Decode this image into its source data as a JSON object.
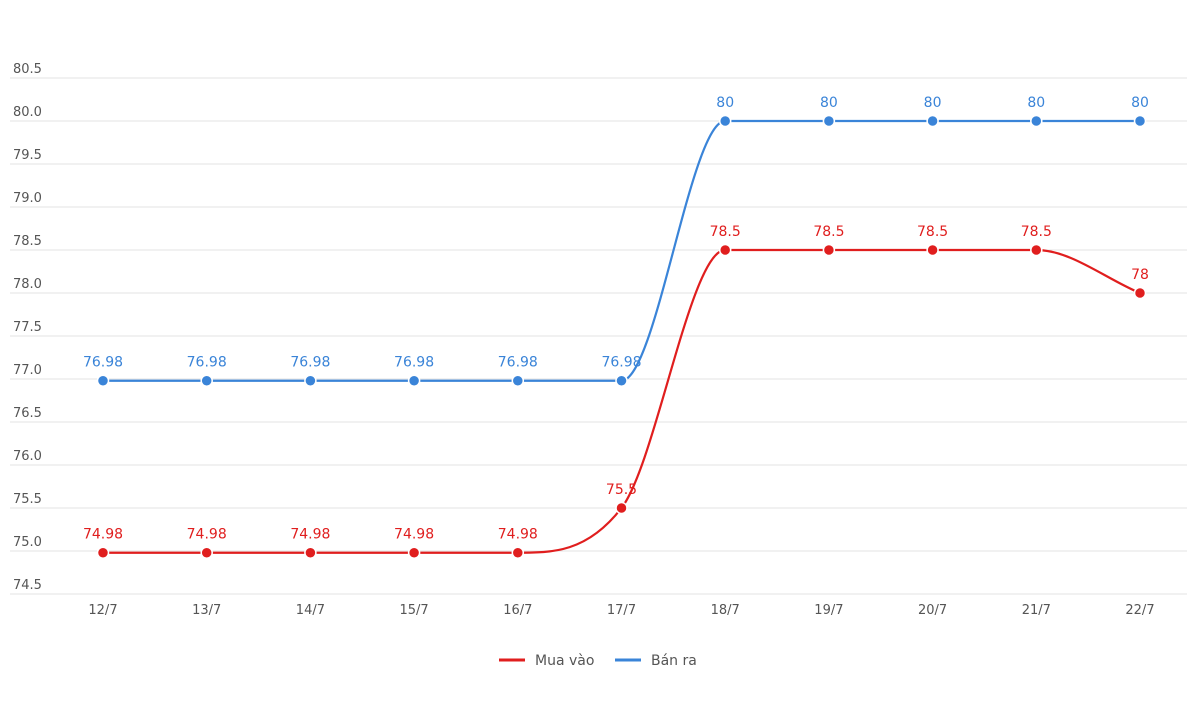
{
  "chart_data": {
    "type": "line",
    "categories": [
      "12/7",
      "13/7",
      "14/7",
      "15/7",
      "16/7",
      "17/7",
      "18/7",
      "19/7",
      "20/7",
      "21/7",
      "22/7"
    ],
    "series": [
      {
        "name": "Mua vào",
        "color": "#e01e1e",
        "values": [
          74.98,
          74.98,
          74.98,
          74.98,
          74.98,
          75.5,
          78.5,
          78.5,
          78.5,
          78.5,
          78
        ],
        "labels": [
          "74.98",
          "74.98",
          "74.98",
          "74.98",
          "74.98",
          "75.5",
          "78.5",
          "78.5",
          "78.5",
          "78.5",
          "78"
        ]
      },
      {
        "name": "Bán ra",
        "color": "#3a84d8",
        "values": [
          76.98,
          76.98,
          76.98,
          76.98,
          76.98,
          76.98,
          80,
          80,
          80,
          80,
          80
        ],
        "labels": [
          "76.98",
          "76.98",
          "76.98",
          "76.98",
          "76.98",
          "76.98",
          "80",
          "80",
          "80",
          "80",
          "80"
        ]
      }
    ],
    "y_ticks": [
      "74.5",
      "75.0",
      "75.5",
      "76.0",
      "76.5",
      "77.0",
      "77.5",
      "78.0",
      "78.5",
      "79.0",
      "79.5",
      "80.0",
      "80.5"
    ],
    "ylim": [
      74.5,
      80.5
    ],
    "grid": true,
    "legend_position": "bottom-center",
    "title": "",
    "xlabel": "",
    "ylabel": ""
  }
}
